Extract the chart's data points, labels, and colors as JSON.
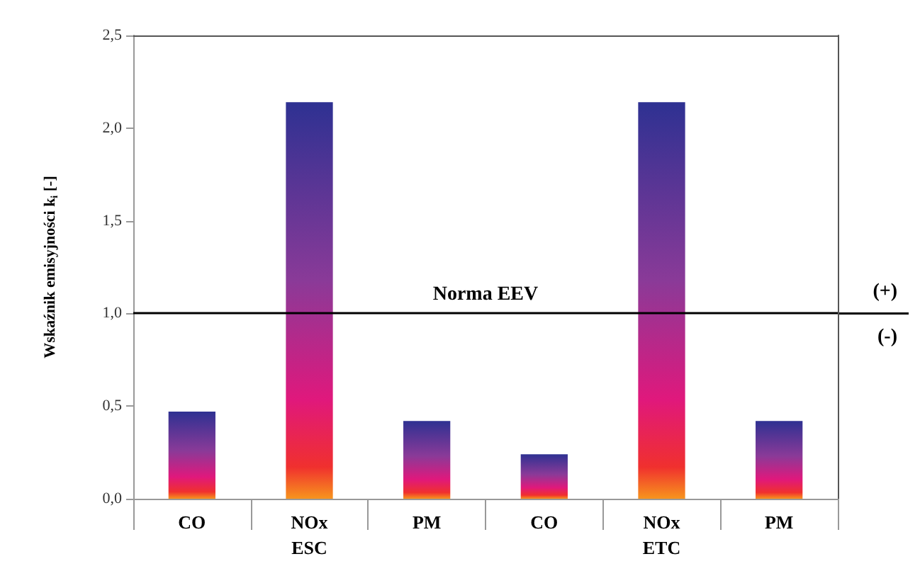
{
  "chart_data": {
    "type": "bar",
    "ylabel": "Wskaźnik emisyjności k$_{i}$ [-]",
    "categories": [
      "CO",
      "NOx",
      "PM",
      "CO",
      "NOx",
      "PM"
    ],
    "values": [
      0.47,
      2.14,
      0.42,
      0.24,
      2.14,
      0.42
    ],
    "color": "#2e3192",
    "ylim": [
      0,
      2.5
    ],
    "yticks": [
      {
        "value": 0,
        "label": "0,0"
      },
      {
        "value": 0.5,
        "label": "0,5"
      },
      {
        "value": 1,
        "label": "1,0"
      },
      {
        "value": 1.5,
        "label": "1,5"
      },
      {
        "value": 2,
        "label": "2,0"
      },
      {
        "value": 2.5,
        "label": "2,5"
      }
    ],
    "grid": false,
    "ref_lines": [
      {
        "axis": "y",
        "value": 1,
        "label": "Norma EEV",
        "color": "#000000"
      }
    ],
    "annotations": [
      "ESC",
      "ETC",
      "(+)",
      "(-)"
    ]
  }
}
